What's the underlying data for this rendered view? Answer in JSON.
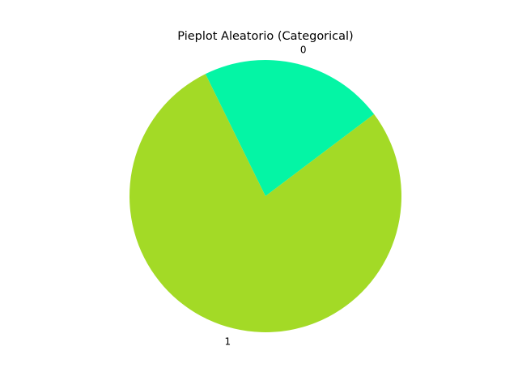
{
  "chart_data": {
    "type": "pie",
    "title": "Pieplot Aleatorio (Categorical)",
    "categories": [
      "0",
      "1"
    ],
    "values": [
      22,
      78
    ],
    "colors": [
      "#04f5a5",
      "#a3da26"
    ],
    "start_angle_deg": 37,
    "direction": "counterclockwise",
    "legend": "none"
  }
}
